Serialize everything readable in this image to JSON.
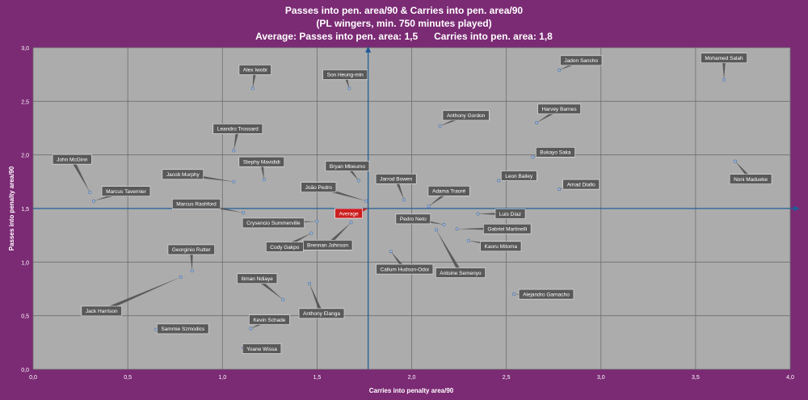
{
  "chart_data": {
    "type": "scatter",
    "title": "Passes into pen. area/90 & Carries into pen. area/90",
    "subtitle": "(PL wingers, min. 750 minutes played)",
    "average_text": "Average: Passes into pen. area: 1,5      Carries into pen. area: 1,8",
    "xlabel": "Carries into penalty area/90",
    "ylabel": "Passes into penalty area/90",
    "xlim": [
      0,
      4
    ],
    "ylim": [
      0,
      3
    ],
    "x_ticks": [
      "0,0",
      "0,5",
      "1,0",
      "1,5",
      "2,0",
      "2,5",
      "3,0",
      "3,5",
      "4,0"
    ],
    "y_ticks": [
      "0,0",
      "0,5",
      "1,0",
      "1,5",
      "2,0",
      "2,5",
      "3,0"
    ],
    "average": {
      "label": "Average",
      "x": 1.77,
      "y": 1.5
    },
    "points": [
      {
        "name": "Mohamed Salah",
        "x": 3.65,
        "y": 2.7
      },
      {
        "name": "Jadon Sancho",
        "x": 2.78,
        "y": 2.79
      },
      {
        "name": "Alex Iwobi",
        "x": 1.16,
        "y": 2.62
      },
      {
        "name": "Son Heung-min",
        "x": 1.67,
        "y": 2.62
      },
      {
        "name": "Harvey Barnes",
        "x": 2.66,
        "y": 2.3
      },
      {
        "name": "Anthony Gordon",
        "x": 2.15,
        "y": 2.27
      },
      {
        "name": "Leandro Trossard",
        "x": 1.06,
        "y": 2.04
      },
      {
        "name": "Bukayo Saka",
        "x": 2.64,
        "y": 1.98
      },
      {
        "name": "Noni Madueke",
        "x": 3.71,
        "y": 1.94
      },
      {
        "name": "John McGinn",
        "x": 0.3,
        "y": 1.65
      },
      {
        "name": "Stephy Mavididi",
        "x": 1.22,
        "y": 1.77
      },
      {
        "name": "Bryan Mbeumo",
        "x": 1.72,
        "y": 1.76
      },
      {
        "name": "Jacob Murphy",
        "x": 1.06,
        "y": 1.75
      },
      {
        "name": "Leon Bailey",
        "x": 2.46,
        "y": 1.76
      },
      {
        "name": "Amad Diallo",
        "x": 2.78,
        "y": 1.68
      },
      {
        "name": "Marcus Tavernier",
        "x": 0.32,
        "y": 1.57
      },
      {
        "name": "João Pedro",
        "x": 1.76,
        "y": 1.57
      },
      {
        "name": "Jarrod Bowen",
        "x": 1.96,
        "y": 1.58
      },
      {
        "name": "Adama Traoré",
        "x": 2.09,
        "y": 1.52
      },
      {
        "name": "Marcus Rashford",
        "x": 1.11,
        "y": 1.46
      },
      {
        "name": "Luis Díaz",
        "x": 2.35,
        "y": 1.45
      },
      {
        "name": "Crysencio Summerville",
        "x": 1.5,
        "y": 1.38
      },
      {
        "name": "Pedro Neto",
        "x": 2.17,
        "y": 1.35
      },
      {
        "name": "Brennan Johnson",
        "x": 1.68,
        "y": 1.37
      },
      {
        "name": "Gabriel Martinelli",
        "x": 2.24,
        "y": 1.31
      },
      {
        "name": "Antoine Semenyo",
        "x": 2.13,
        "y": 1.3
      },
      {
        "name": "Cody Gakpo",
        "x": 1.47,
        "y": 1.27
      },
      {
        "name": "Kaoru Mitoma",
        "x": 2.3,
        "y": 1.2
      },
      {
        "name": "Callum Hudson-Odoi",
        "x": 1.89,
        "y": 1.1
      },
      {
        "name": "Georginio Rutter",
        "x": 0.84,
        "y": 0.92
      },
      {
        "name": "Jack Harrison",
        "x": 0.78,
        "y": 0.86
      },
      {
        "name": "Iliman Ndiaye",
        "x": 1.32,
        "y": 0.65
      },
      {
        "name": "Anthony Elanga",
        "x": 1.46,
        "y": 0.8
      },
      {
        "name": "Alejandro Garnacho",
        "x": 2.54,
        "y": 0.7
      },
      {
        "name": "Sammie Szmodics",
        "x": 0.65,
        "y": 0.37
      },
      {
        "name": "Kevin Schade",
        "x": 1.15,
        "y": 0.38
      },
      {
        "name": "Yoane Wissa",
        "x": 1.11,
        "y": 0.2
      }
    ]
  }
}
